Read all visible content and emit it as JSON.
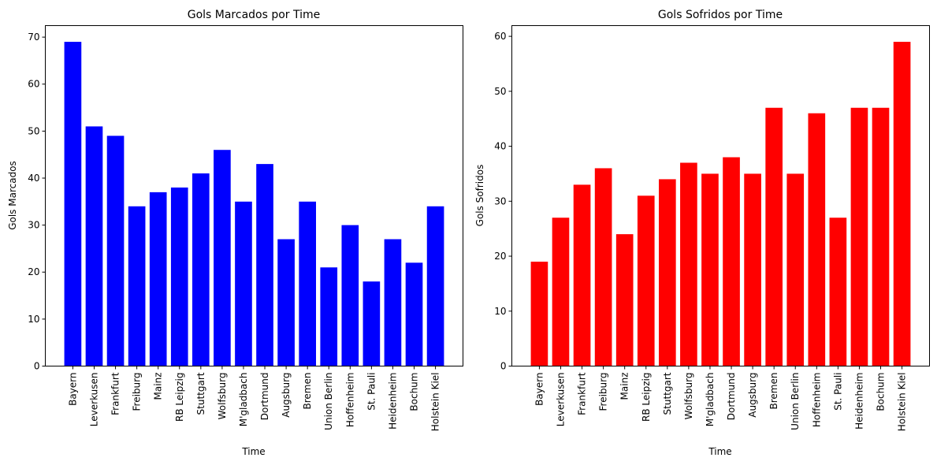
{
  "chart_data": [
    {
      "type": "bar",
      "title": "Gols Marcados por Time",
      "xlabel": "Time",
      "ylabel": "Gols Marcados",
      "color": "#0000ff",
      "ylim": [
        0,
        72.45
      ],
      "yticks": [
        0,
        10,
        20,
        30,
        40,
        50,
        60,
        70
      ],
      "categories": [
        "Bayern",
        "Leverkusen",
        "Frankfurt",
        "Freiburg",
        "Mainz",
        "RB Leipzig",
        "Stuttgart",
        "Wolfsburg",
        "M'gladbach",
        "Dortmund",
        "Augsburg",
        "Bremen",
        "Union Berlin",
        "Hoffenheim",
        "St. Pauli",
        "Heidenheim",
        "Bochum",
        "Holstein Kiel"
      ],
      "values": [
        69,
        51,
        49,
        34,
        37,
        38,
        41,
        46,
        35,
        43,
        27,
        35,
        21,
        30,
        18,
        27,
        22,
        34
      ]
    },
    {
      "type": "bar",
      "title": "Gols Sofridos por Time",
      "xlabel": "Time",
      "ylabel": "Gols Sofridos",
      "color": "#ff0000",
      "ylim": [
        0,
        61.95
      ],
      "yticks": [
        0,
        10,
        20,
        30,
        40,
        50,
        60
      ],
      "categories": [
        "Bayern",
        "Leverkusen",
        "Frankfurt",
        "Freiburg",
        "Mainz",
        "RB Leipzig",
        "Stuttgart",
        "Wolfsburg",
        "M'gladbach",
        "Dortmund",
        "Augsburg",
        "Bremen",
        "Union Berlin",
        "Hoffenheim",
        "St. Pauli",
        "Heidenheim",
        "Bochum",
        "Holstein Kiel"
      ],
      "values": [
        19,
        27,
        33,
        36,
        24,
        31,
        34,
        37,
        35,
        38,
        35,
        47,
        35,
        46,
        27,
        47,
        47,
        59
      ]
    }
  ]
}
